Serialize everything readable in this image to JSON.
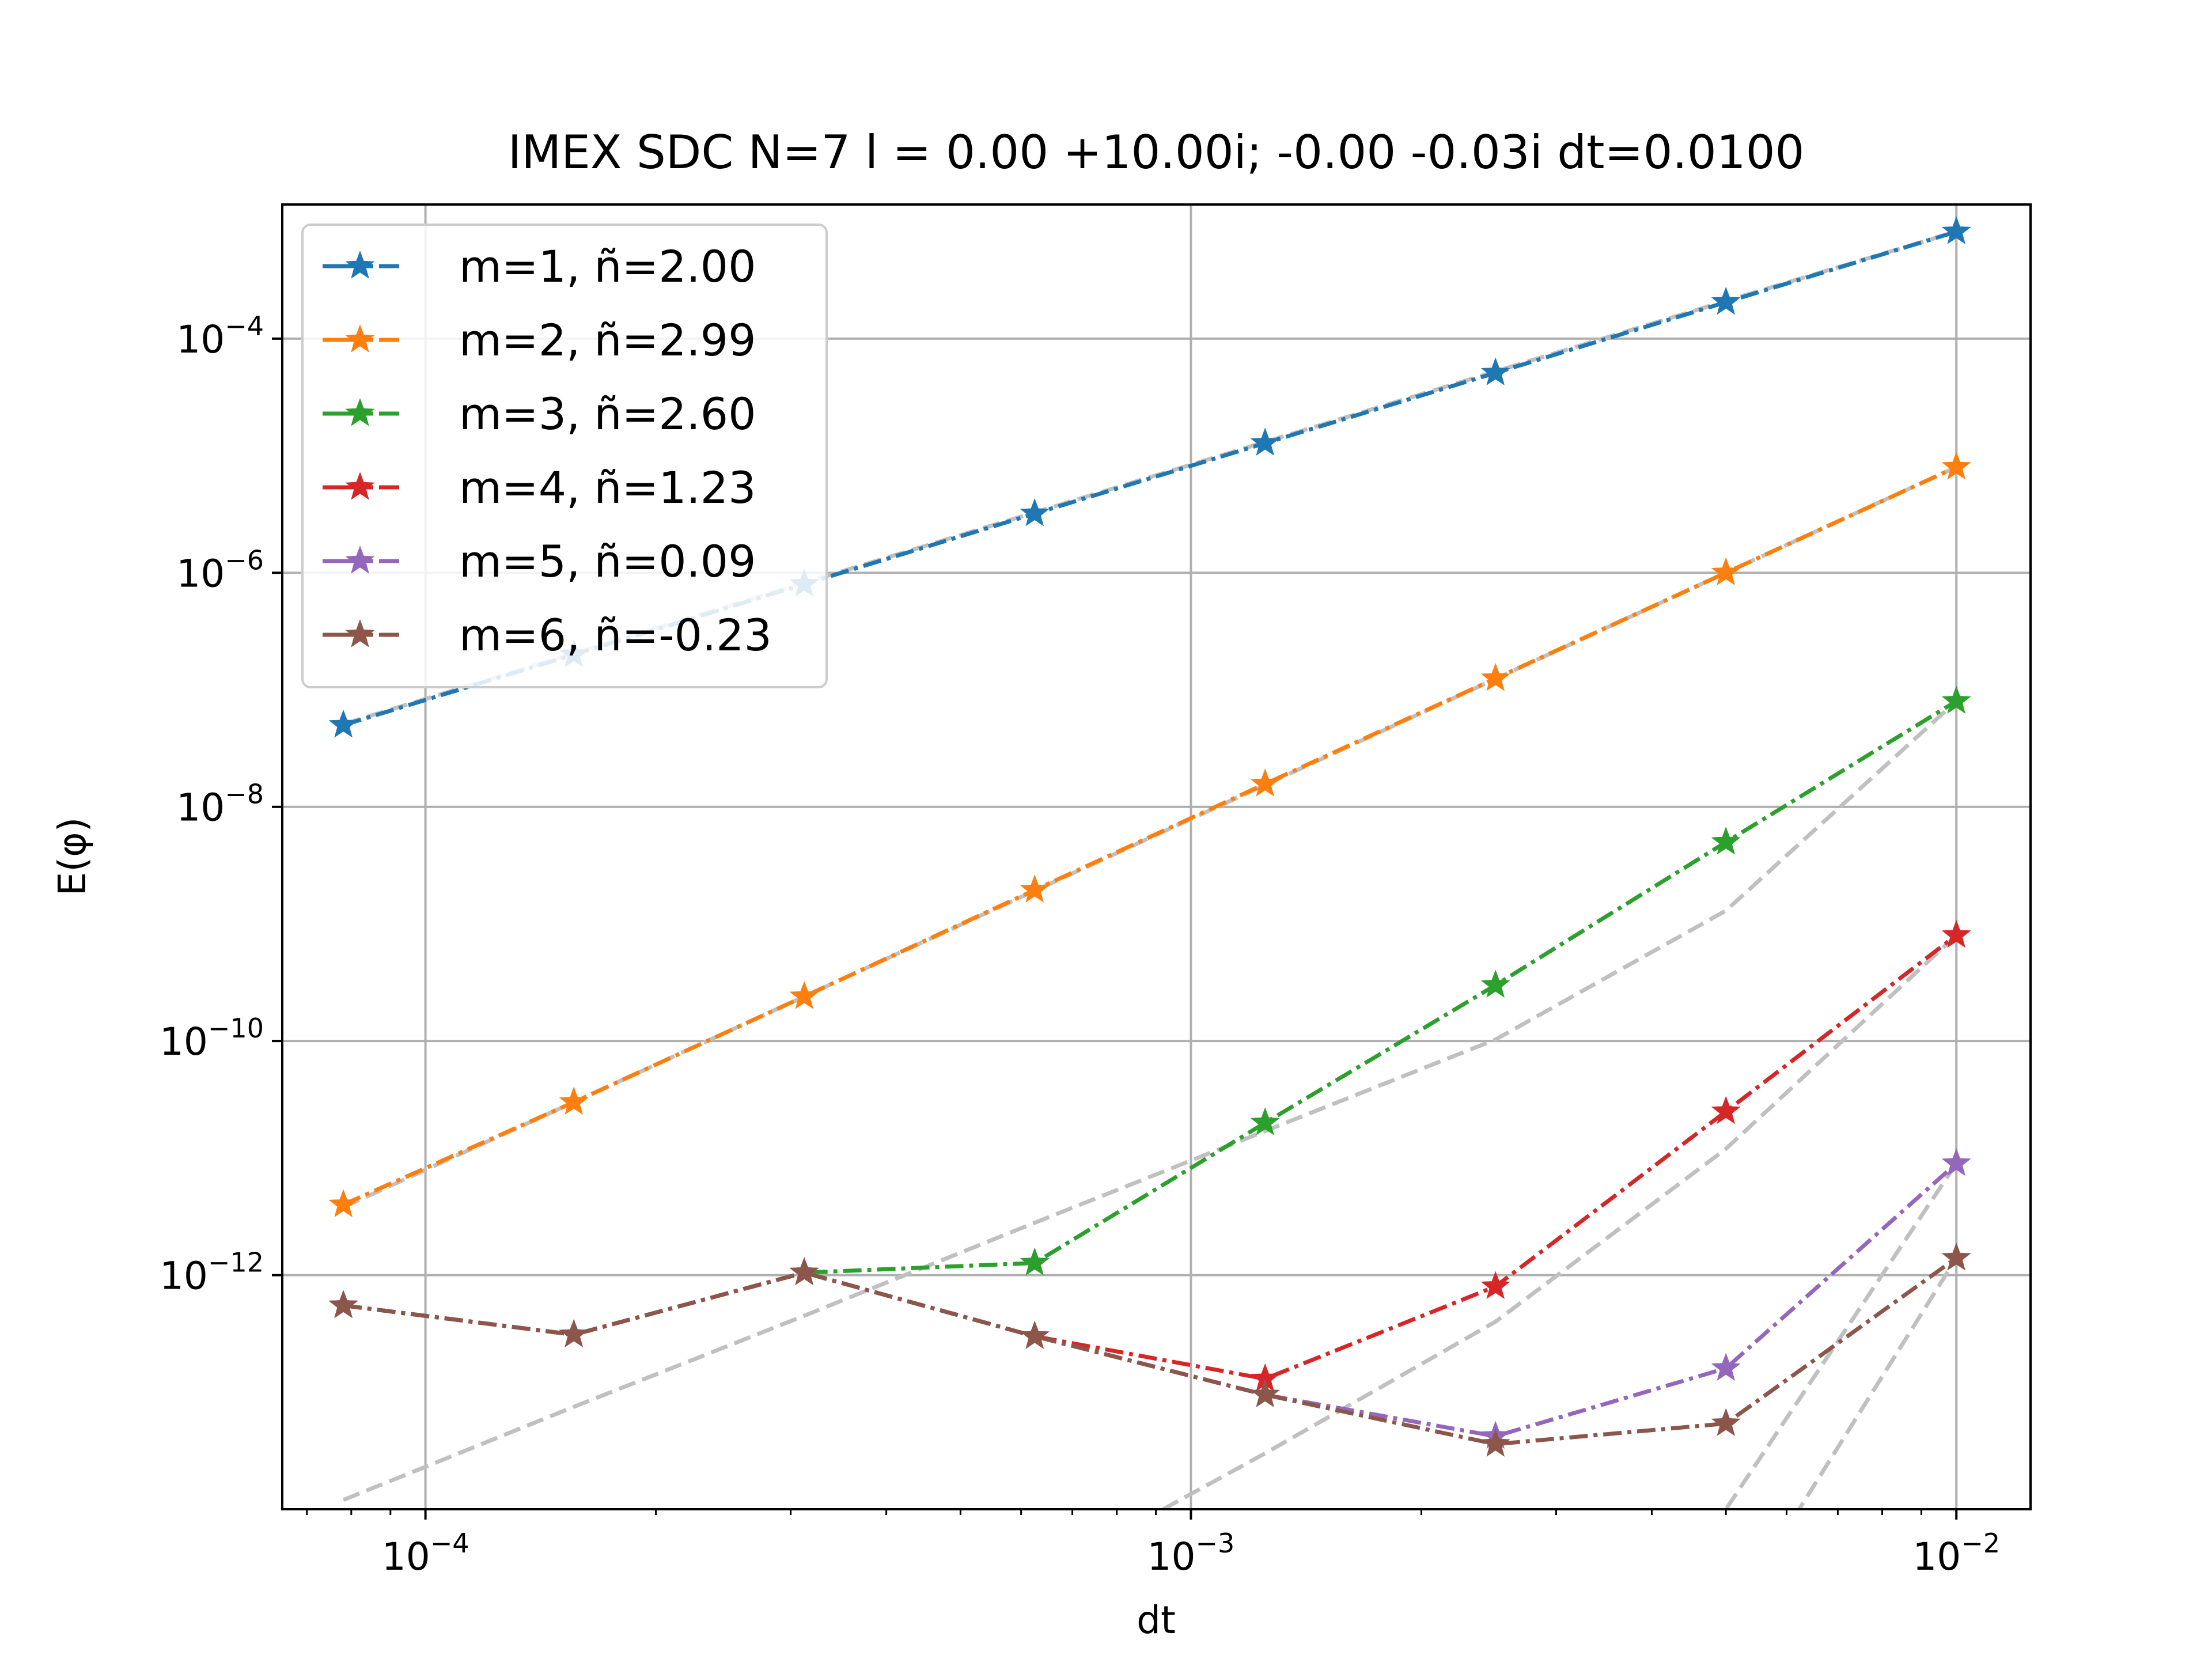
{
  "chart_data": {
    "type": "line",
    "title": "IMEX SDC N=7 l = 0.00 +10.00i; -0.00 -0.03i dt=0.0100",
    "xlabel": "dt",
    "ylabel": "E(φ)",
    "xscale": "log",
    "yscale": "log",
    "xlim": [
      6.5e-05,
      0.0125
    ],
    "ylim": [
      1e-14,
      0.0014
    ],
    "grid": true,
    "legend_position": "top-left",
    "x_ticks": [
      {
        "base": "10",
        "exp": "−4",
        "value": 0.0001
      },
      {
        "base": "10",
        "exp": "−3",
        "value": 0.001
      },
      {
        "base": "10",
        "exp": "−2",
        "value": 0.01
      }
    ],
    "y_ticks": [
      {
        "base": "10",
        "exp": "−4",
        "value": 0.0001
      },
      {
        "base": "10",
        "exp": "−6",
        "value": 1e-06
      },
      {
        "base": "10",
        "exp": "−8",
        "value": 1e-08
      },
      {
        "base": "10",
        "exp": "−10",
        "value": 1e-10
      },
      {
        "base": "10",
        "exp": "−12",
        "value": 1e-12
      }
    ],
    "x": [
      7.8125e-05,
      0.00015625,
      0.0003125,
      0.000625,
      0.00125,
      0.0025,
      0.005,
      0.01
    ],
    "series": [
      {
        "name": "m=1, ñ=2.00",
        "color": "#1f77b4",
        "values": [
          5e-08,
          2e-07,
          8e-07,
          3.2e-06,
          1.28e-05,
          5.1e-05,
          0.000205,
          0.00082
        ],
        "ref_values": [
          5.1e-08,
          2.05e-07,
          8.2e-07,
          3.28e-06,
          1.31e-05,
          5.25e-05,
          0.00021,
          0.00082
        ]
      },
      {
        "name": "m=2, ñ=2.99",
        "color": "#ff7f0e",
        "values": [
          4e-12,
          3e-11,
          2.4e-10,
          1.95e-09,
          1.57e-08,
          1.25e-07,
          1e-06,
          8e-06
        ],
        "ref_values": [
          3.8e-12,
          3e-11,
          2.4e-10,
          1.92e-09,
          1.54e-08,
          1.24e-07,
          1e-06,
          8e-06
        ]
      },
      {
        "name": "m=3, ñ=2.60",
        "color": "#2ca02c",
        "values": [
          5.5e-13,
          3.1e-13,
          1.05e-12,
          1.27e-12,
          2e-11,
          3e-10,
          5e-09,
          8e-08
        ],
        "ref_values": [
          1.2e-14,
          7.5e-14,
          4.5e-13,
          2.8e-12,
          1.7e-11,
          1.03e-10,
          1.3e-09,
          8e-08
        ]
      },
      {
        "name": "m=4, ñ=1.23",
        "color": "#d62728",
        "values": [
          5.5e-13,
          3.1e-13,
          1.05e-12,
          3e-13,
          1.3e-13,
          8e-13,
          2.5e-11,
          8e-10
        ],
        "ref_values": [
          1e-15,
          1e-15,
          1e-15,
          2.5e-15,
          3e-14,
          4e-13,
          1.2e-11,
          8e-10
        ]
      },
      {
        "name": "m=5, ñ=0.09",
        "color": "#9467bd",
        "values": [
          5.5e-13,
          3.1e-13,
          1.05e-12,
          3e-13,
          9.5e-14,
          4.2e-14,
          1.6e-13,
          9e-12
        ],
        "ref_values": [
          1e-15,
          1e-15,
          1e-15,
          1e-15,
          1e-15,
          1e-15,
          1e-14,
          9e-12
        ]
      },
      {
        "name": "m=6, ñ=-0.23",
        "color": "#8c564b",
        "values": [
          5.5e-13,
          3.1e-13,
          1.05e-12,
          3e-13,
          9.5e-14,
          3.6e-14,
          5.4e-14,
          1.4e-12
        ],
        "ref_values": [
          1e-15,
          1e-15,
          1e-15,
          1e-15,
          1e-15,
          1e-15,
          1e-15,
          1.4e-12
        ]
      }
    ]
  }
}
